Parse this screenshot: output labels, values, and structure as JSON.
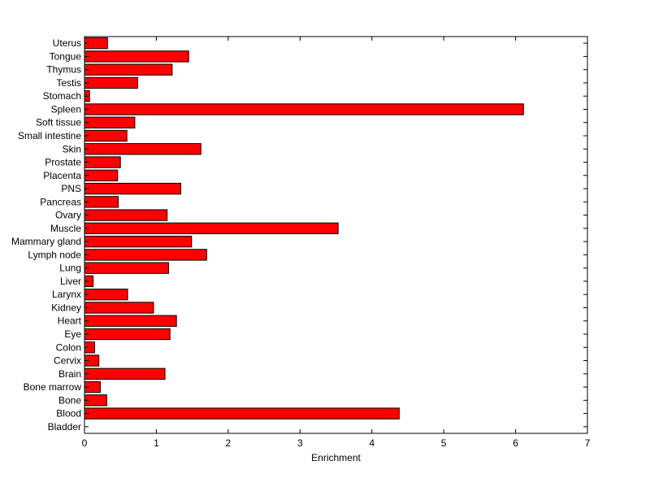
{
  "chart_data": {
    "type": "bar",
    "orientation": "horizontal",
    "xlabel": "Enrichment",
    "ylabel": "",
    "title": "",
    "xlim": [
      0,
      7
    ],
    "xticks": [
      0,
      1,
      2,
      3,
      4,
      5,
      6,
      7
    ],
    "xtick_labels": [
      "0",
      "1",
      "2",
      "3",
      "4",
      "5",
      "6",
      "7"
    ],
    "grid": false,
    "bar_color": "#ff0000",
    "edge_color": "#000000",
    "categories": [
      "Uterus",
      "Tongue",
      "Thymus",
      "Testis",
      "Stomach",
      "Spleen",
      "Soft tissue",
      "Small intestine",
      "Skin",
      "Prostate",
      "Placenta",
      "PNS",
      "Pancreas",
      "Ovary",
      "Muscle",
      "Mammary gland",
      "Lymph node",
      "Lung",
      "Liver",
      "Larynx",
      "Kidney",
      "Heart",
      "Eye",
      "Colon",
      "Cervix",
      "Brain",
      "Bone marrow",
      "Bone",
      "Blood",
      "Bladder"
    ],
    "values": [
      0.32,
      1.45,
      1.22,
      0.74,
      0.07,
      6.11,
      0.7,
      0.59,
      1.62,
      0.5,
      0.46,
      1.34,
      0.47,
      1.15,
      3.53,
      1.49,
      1.7,
      1.17,
      0.12,
      0.6,
      0.96,
      1.28,
      1.19,
      0.14,
      0.2,
      1.12,
      0.22,
      0.31,
      4.38,
      0.0
    ]
  }
}
